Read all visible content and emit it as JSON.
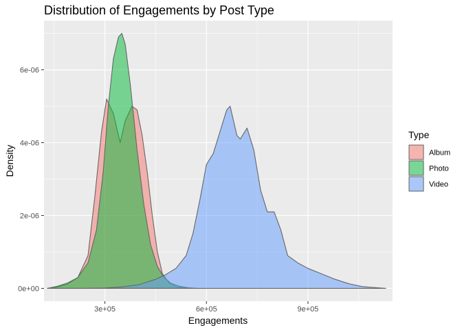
{
  "chart_data": {
    "type": "area",
    "title": "Distribution of Engagements by Post Type",
    "xlabel": "Engagements",
    "ylabel": "Density",
    "xlim": [
      120000,
      1150000
    ],
    "ylim": [
      -3.5e-07,
      7.35e-06
    ],
    "x_ticks": [
      300000,
      600000,
      900000
    ],
    "x_tick_labels": [
      "3e+05",
      "6e+05",
      "9e+05"
    ],
    "y_ticks": [
      0,
      2e-06,
      4e-06,
      6e-06
    ],
    "y_tick_labels": [
      "0e+00",
      "2e-06",
      "4e-06",
      "6e-06"
    ],
    "grid": true,
    "legend": {
      "title": "Type",
      "position": "right"
    },
    "series": [
      {
        "name": "Album",
        "color": "#F8766D",
        "x": [
          130000,
          160000,
          190000,
          220000,
          250000,
          270000,
          290000,
          305000,
          325000,
          345000,
          360000,
          380000,
          395000,
          410000,
          425000,
          440000,
          455000,
          470000,
          490000,
          510000,
          540000,
          570000
        ],
        "y": [
          0.0,
          4e-08,
          1.2e-07,
          3e-07,
          9e-07,
          2.5e-06,
          4.3e-06,
          5.2e-06,
          4.8e-06,
          4e-06,
          4.6e-06,
          5e-06,
          4.9e-06,
          4.2e-06,
          3.2e-06,
          2e-06,
          1e-06,
          4e-07,
          1.5e-07,
          5e-08,
          1e-08,
          0.0
        ]
      },
      {
        "name": "Photo",
        "color": "#00BA38",
        "x": [
          130000,
          160000,
          190000,
          220000,
          250000,
          275000,
          295000,
          310000,
          325000,
          340000,
          350000,
          360000,
          375000,
          395000,
          415000,
          435000,
          455000,
          475000,
          495000,
          520000,
          545000,
          570000
        ],
        "y": [
          0.0,
          6e-08,
          1.5e-07,
          3e-07,
          7e-07,
          1.6e-06,
          3.2e-06,
          5e-06,
          6.3e-06,
          6.9e-06,
          7e-06,
          6.7e-06,
          5.6e-06,
          3.8e-06,
          2.3e-06,
          1.2e-06,
          6e-07,
          3e-07,
          1.4e-07,
          6e-08,
          2e-08,
          0.0
        ]
      },
      {
        "name": "Video",
        "color": "#619CFF",
        "x": [
          250000,
          300000,
          350000,
          400000,
          450000,
          480000,
          510000,
          540000,
          560000,
          580000,
          600000,
          620000,
          640000,
          660000,
          670000,
          690000,
          700000,
          720000,
          740000,
          760000,
          780000,
          800000,
          820000,
          840000,
          870000,
          900000,
          940000,
          980000,
          1020000,
          1060000,
          1100000,
          1130000
        ],
        "y": [
          0.0,
          1e-08,
          4e-08,
          1e-07,
          2.5e-07,
          3.8e-07,
          5.5e-07,
          9e-07,
          1.5e-06,
          2.4e-06,
          3.4e-06,
          3.7e-06,
          4.3e-06,
          4.9e-06,
          5e-06,
          4.2e-06,
          4.1e-06,
          4.4e-06,
          3.8e-06,
          2.7e-06,
          2.1e-06,
          2.1e-06,
          1.6e-06,
          9e-07,
          7e-07,
          5.5e-07,
          4e-07,
          2.5e-07,
          1.3e-07,
          5e-08,
          2e-08,
          0.0
        ]
      }
    ]
  }
}
